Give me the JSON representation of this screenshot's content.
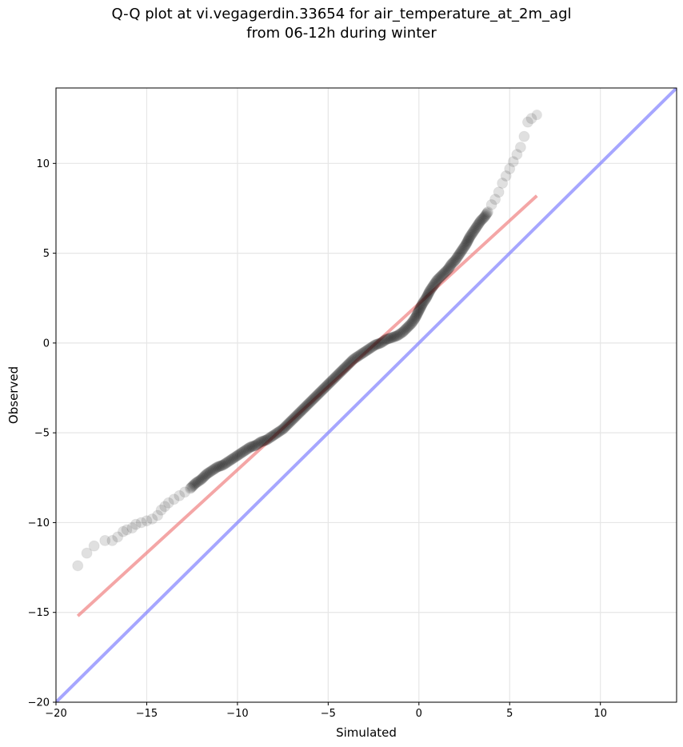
{
  "chart_data": {
    "type": "scatter",
    "title": "Q-Q plot at vi.vegagerdin.33654 for air_temperature_at_2m_agl",
    "subtitle": "from 06-12h during winter",
    "xlabel": "Simulated",
    "ylabel": "Observed",
    "xlim": [
      -20,
      14.2
    ],
    "ylim": [
      -20,
      14.2
    ],
    "xticks": [
      -20,
      -15,
      -10,
      -5,
      0,
      5,
      10
    ],
    "yticks": [
      -20,
      -15,
      -10,
      -5,
      0,
      5,
      10
    ],
    "xtick_labels": [
      "−20",
      "−15",
      "−10",
      "−5",
      "0",
      "5",
      "10"
    ],
    "ytick_labels": [
      "−20",
      "−15",
      "−10",
      "−5",
      "0",
      "5",
      "10"
    ],
    "grid": true,
    "quantile_points": {
      "x": [
        -18.8,
        -18.3,
        -17.9,
        -17.3,
        -16.9,
        -16.6,
        -16.3,
        -16.1,
        -15.8,
        -15.6,
        -15.3,
        -15.0,
        -14.7,
        -14.4,
        -14.2,
        -14.0,
        -13.8,
        -13.5,
        -13.2,
        -12.9,
        -12.6,
        -12.3,
        -12.0,
        -11.7,
        -11.4,
        -11.1,
        -10.8,
        -10.5,
        -10.2,
        -9.9,
        -9.6,
        -9.3,
        -9.0,
        -8.7,
        -8.4,
        -8.1,
        -7.8,
        -7.5,
        -7.2,
        -6.9,
        -6.6,
        -6.3,
        -6.0,
        -5.7,
        -5.4,
        -5.1,
        -4.8,
        -4.5,
        -4.2,
        -3.9,
        -3.6,
        -3.3,
        -3.0,
        -2.7,
        -2.4,
        -2.1,
        -1.8,
        -1.5,
        -1.2,
        -0.9,
        -0.6,
        -0.4,
        -0.2,
        0.0,
        0.2,
        0.4,
        0.6,
        0.8,
        1.0,
        1.2,
        1.4,
        1.6,
        1.8,
        2.0,
        2.2,
        2.4,
        2.6,
        2.8,
        3.0,
        3.2,
        3.4,
        3.6,
        3.8,
        4.0,
        4.2,
        4.4,
        4.6,
        4.8,
        5.0,
        5.2,
        5.4,
        5.6,
        5.8,
        6.0,
        6.2,
        6.5
      ],
      "y": [
        -12.4,
        -11.7,
        -11.3,
        -11.0,
        -11.0,
        -10.8,
        -10.5,
        -10.4,
        -10.3,
        -10.1,
        -10.0,
        -9.9,
        -9.8,
        -9.6,
        -9.3,
        -9.1,
        -8.9,
        -8.7,
        -8.5,
        -8.3,
        -8.1,
        -7.8,
        -7.6,
        -7.3,
        -7.1,
        -6.9,
        -6.8,
        -6.6,
        -6.4,
        -6.2,
        -6.0,
        -5.8,
        -5.7,
        -5.5,
        -5.4,
        -5.2,
        -5.0,
        -4.8,
        -4.5,
        -4.2,
        -3.9,
        -3.6,
        -3.3,
        -3.0,
        -2.7,
        -2.4,
        -2.1,
        -1.8,
        -1.5,
        -1.2,
        -0.9,
        -0.7,
        -0.5,
        -0.3,
        -0.1,
        0.0,
        0.2,
        0.3,
        0.4,
        0.6,
        0.9,
        1.1,
        1.4,
        1.8,
        2.2,
        2.5,
        2.9,
        3.2,
        3.5,
        3.7,
        3.9,
        4.1,
        4.4,
        4.6,
        4.9,
        5.2,
        5.5,
        5.9,
        6.2,
        6.5,
        6.8,
        7.0,
        7.3,
        7.7,
        8.0,
        8.4,
        8.9,
        9.3,
        9.7,
        10.1,
        10.5,
        10.9,
        11.5,
        12.3,
        12.5,
        12.7
      ]
    },
    "fit_line": {
      "x": [
        -18.8,
        6.5
      ],
      "y": [
        -15.2,
        8.2
      ],
      "color": "#f08080"
    },
    "identity_line": {
      "x": [
        -20,
        14.2
      ],
      "y": [
        -20,
        14.2
      ],
      "color": "#8080ff"
    },
    "marker_color": "#000000"
  }
}
